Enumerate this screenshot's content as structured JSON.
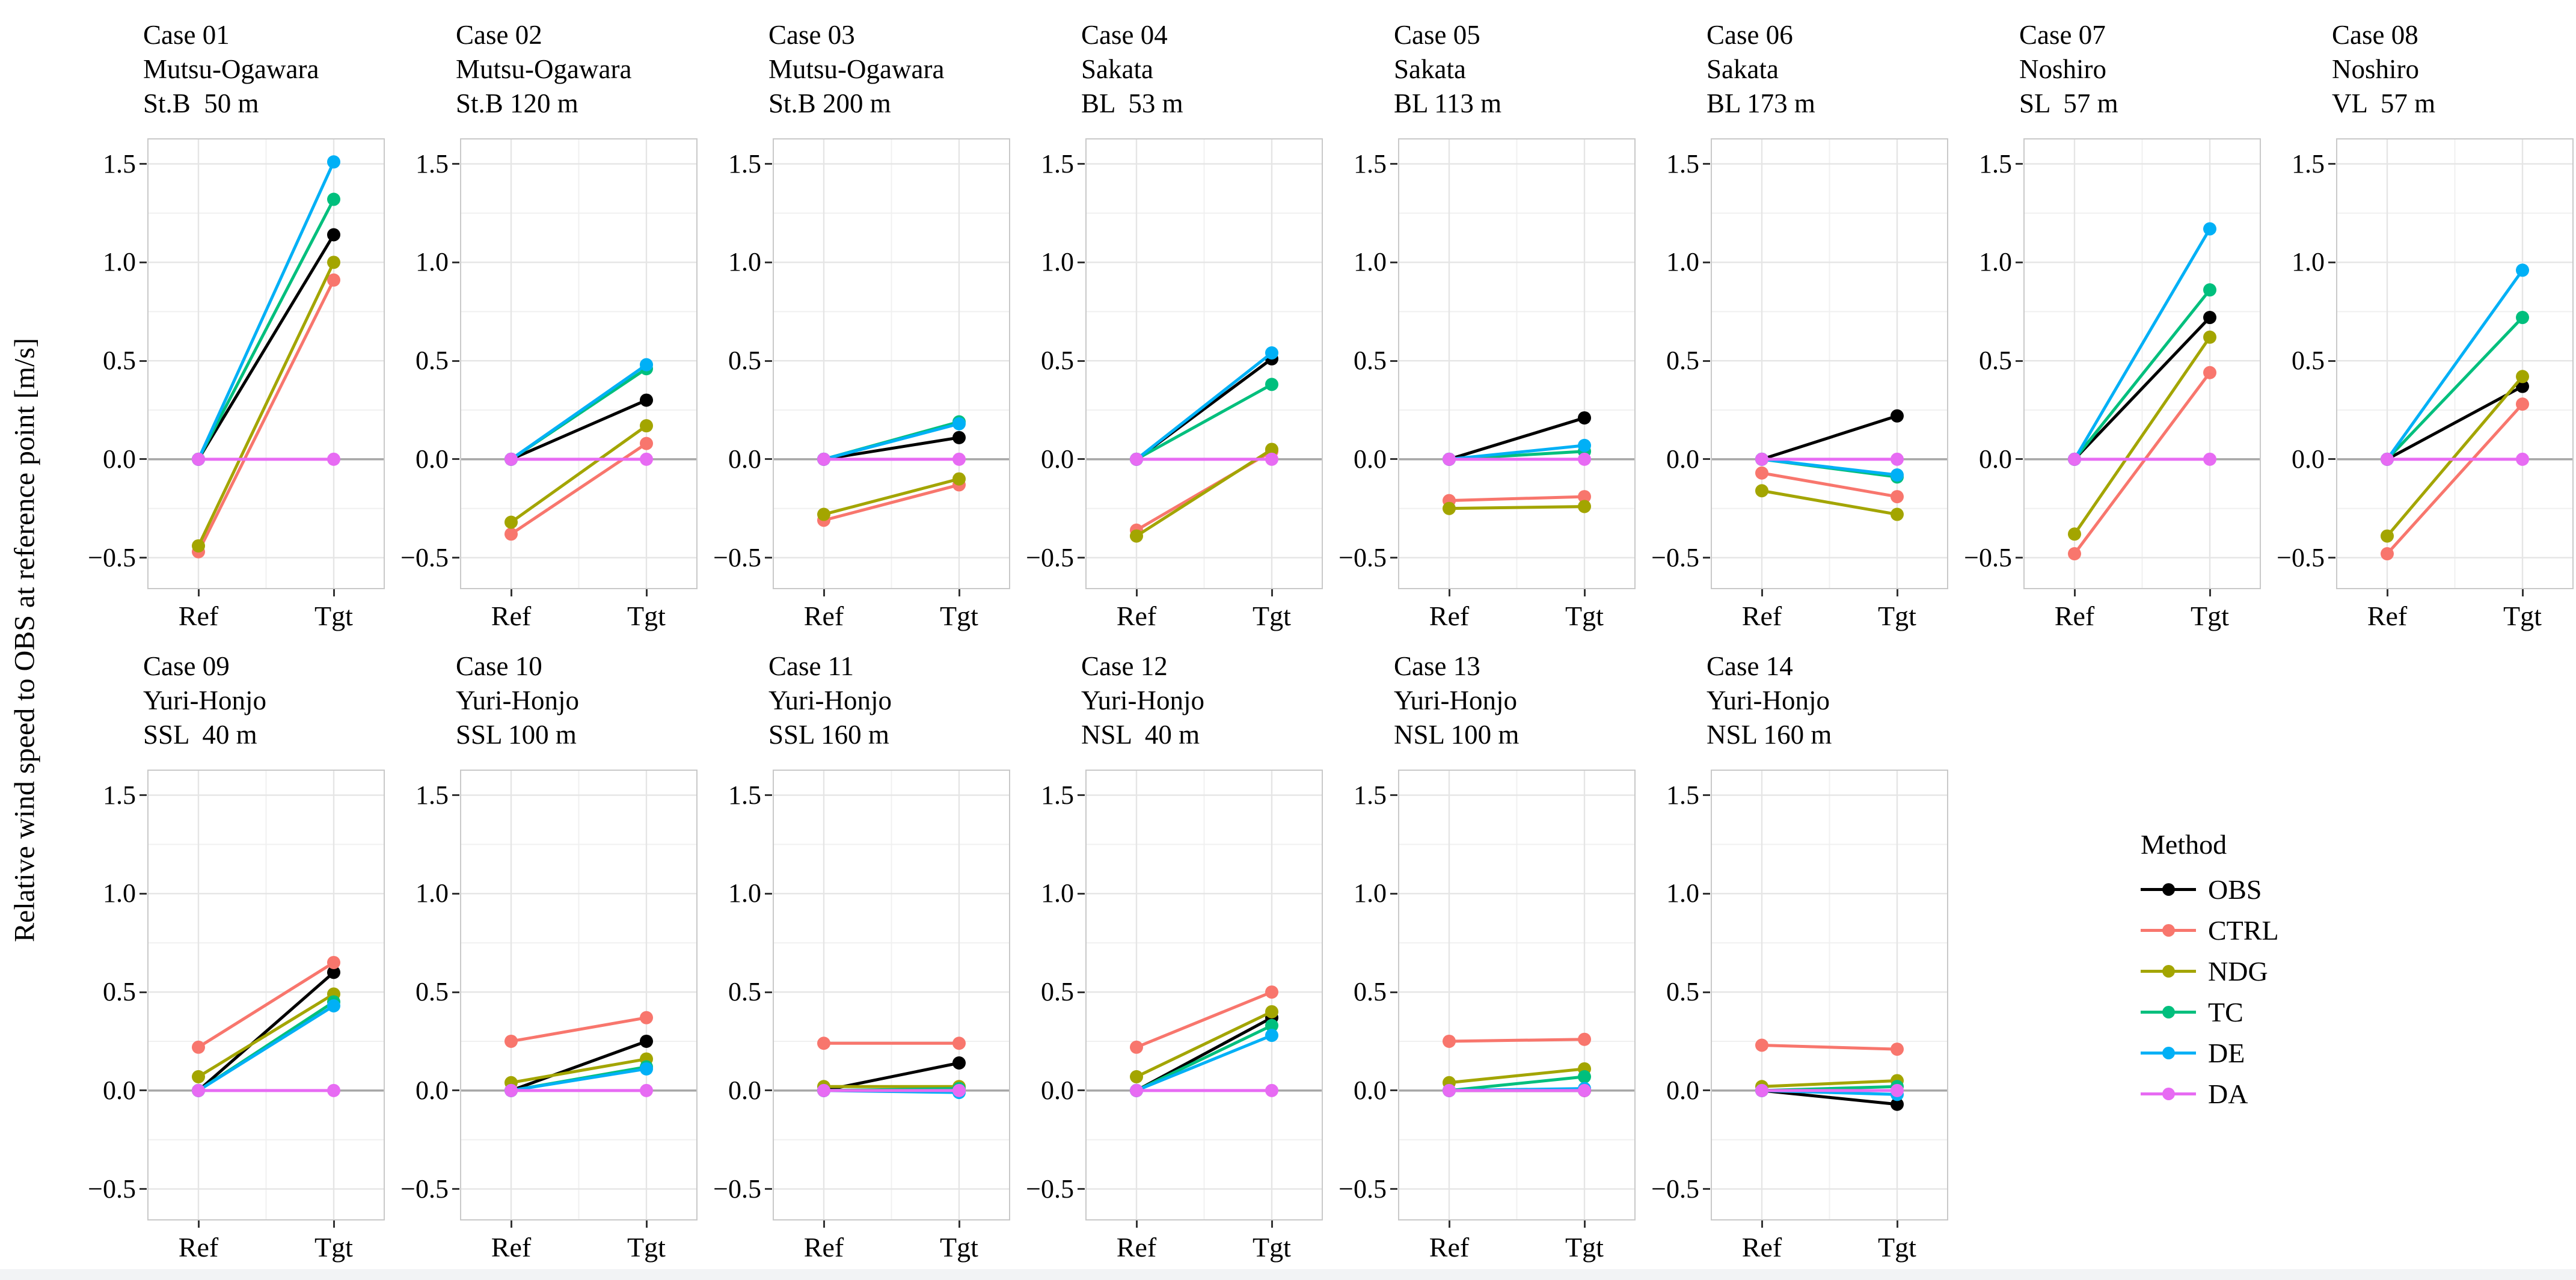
{
  "figure": {
    "y_axis_label": "Relative wind speed to OBS at reference point [m/s]"
  },
  "axes": {
    "x_categories": [
      "Ref",
      "Tgt"
    ],
    "y_tick_labels": [
      "1.5",
      "1.0",
      "0.5",
      "0.0",
      "−0.5"
    ],
    "y_tick_values": [
      1.5,
      1.0,
      0.5,
      0.0,
      -0.5
    ],
    "y_minor_values": [
      1.25,
      0.75,
      0.25,
      -0.25
    ],
    "ylim": [
      -0.66,
      1.63
    ]
  },
  "legend": {
    "title": "Method",
    "entries": [
      {
        "label": "OBS",
        "color": "#000000"
      },
      {
        "label": "CTRL",
        "color": "#F8766D"
      },
      {
        "label": "NDG",
        "color": "#A3A500"
      },
      {
        "label": "TC",
        "color": "#00BF7D"
      },
      {
        "label": "DE",
        "color": "#00B0F6"
      },
      {
        "label": "DA",
        "color": "#E76BF3"
      }
    ]
  },
  "chart_data": {
    "type": "line",
    "x_categories": [
      "Ref",
      "Tgt"
    ],
    "ylabel": "Relative wind speed to OBS at reference point [m/s]",
    "ylim": [
      -0.66,
      1.63
    ],
    "grid": "on",
    "legend_position": "bottom-right",
    "panels": [
      {
        "title_lines": [
          "Case 01",
          "Mutsu-Ogawara",
          "St.B  50 m"
        ],
        "series": [
          {
            "name": "OBS",
            "values": [
              0.0,
              1.14
            ]
          },
          {
            "name": "CTRL",
            "values": [
              -0.47,
              0.91
            ]
          },
          {
            "name": "NDG",
            "values": [
              -0.44,
              1.0
            ]
          },
          {
            "name": "TC",
            "values": [
              0.0,
              1.32
            ]
          },
          {
            "name": "DE",
            "values": [
              0.0,
              1.51
            ]
          },
          {
            "name": "DA",
            "values": [
              0.0,
              0.0
            ]
          }
        ]
      },
      {
        "title_lines": [
          "Case 02",
          "Mutsu-Ogawara",
          "St.B 120 m"
        ],
        "series": [
          {
            "name": "OBS",
            "values": [
              0.0,
              0.3
            ]
          },
          {
            "name": "CTRL",
            "values": [
              -0.38,
              0.08
            ]
          },
          {
            "name": "NDG",
            "values": [
              -0.32,
              0.17
            ]
          },
          {
            "name": "TC",
            "values": [
              0.0,
              0.46
            ]
          },
          {
            "name": "DE",
            "values": [
              0.0,
              0.48
            ]
          },
          {
            "name": "DA",
            "values": [
              0.0,
              0.0
            ]
          }
        ]
      },
      {
        "title_lines": [
          "Case 03",
          "Mutsu-Ogawara",
          "St.B 200 m"
        ],
        "series": [
          {
            "name": "OBS",
            "values": [
              0.0,
              0.11
            ]
          },
          {
            "name": "CTRL",
            "values": [
              -0.31,
              -0.13
            ]
          },
          {
            "name": "NDG",
            "values": [
              -0.28,
              -0.1
            ]
          },
          {
            "name": "TC",
            "values": [
              0.0,
              0.19
            ]
          },
          {
            "name": "DE",
            "values": [
              0.0,
              0.18
            ]
          },
          {
            "name": "DA",
            "values": [
              0.0,
              0.0
            ]
          }
        ]
      },
      {
        "title_lines": [
          "Case 04",
          "Sakata",
          "BL  53 m"
        ],
        "series": [
          {
            "name": "OBS",
            "values": [
              0.0,
              0.51
            ]
          },
          {
            "name": "CTRL",
            "values": [
              -0.36,
              0.04
            ]
          },
          {
            "name": "NDG",
            "values": [
              -0.39,
              0.05
            ]
          },
          {
            "name": "TC",
            "values": [
              0.0,
              0.38
            ]
          },
          {
            "name": "DE",
            "values": [
              0.0,
              0.54
            ]
          },
          {
            "name": "DA",
            "values": [
              0.0,
              0.0
            ]
          }
        ]
      },
      {
        "title_lines": [
          "Case 05",
          "Sakata",
          "BL 113 m"
        ],
        "series": [
          {
            "name": "OBS",
            "values": [
              0.0,
              0.21
            ]
          },
          {
            "name": "CTRL",
            "values": [
              -0.21,
              -0.19
            ]
          },
          {
            "name": "NDG",
            "values": [
              -0.25,
              -0.24
            ]
          },
          {
            "name": "TC",
            "values": [
              0.0,
              0.04
            ]
          },
          {
            "name": "DE",
            "values": [
              0.0,
              0.07
            ]
          },
          {
            "name": "DA",
            "values": [
              0.0,
              0.0
            ]
          }
        ]
      },
      {
        "title_lines": [
          "Case 06",
          "Sakata",
          "BL 173 m"
        ],
        "series": [
          {
            "name": "OBS",
            "values": [
              0.0,
              0.22
            ]
          },
          {
            "name": "CTRL",
            "values": [
              -0.07,
              -0.19
            ]
          },
          {
            "name": "NDG",
            "values": [
              -0.16,
              -0.28
            ]
          },
          {
            "name": "TC",
            "values": [
              0.0,
              -0.09
            ]
          },
          {
            "name": "DE",
            "values": [
              0.0,
              -0.08
            ]
          },
          {
            "name": "DA",
            "values": [
              0.0,
              0.0
            ]
          }
        ]
      },
      {
        "title_lines": [
          "Case 07",
          "Noshiro",
          "SL  57 m"
        ],
        "series": [
          {
            "name": "OBS",
            "values": [
              0.0,
              0.72
            ]
          },
          {
            "name": "CTRL",
            "values": [
              -0.48,
              0.44
            ]
          },
          {
            "name": "NDG",
            "values": [
              -0.38,
              0.62
            ]
          },
          {
            "name": "TC",
            "values": [
              0.0,
              0.86
            ]
          },
          {
            "name": "DE",
            "values": [
              0.0,
              1.17
            ]
          },
          {
            "name": "DA",
            "values": [
              0.0,
              0.0
            ]
          }
        ]
      },
      {
        "title_lines": [
          "Case 08",
          "Noshiro",
          "VL  57 m"
        ],
        "series": [
          {
            "name": "OBS",
            "values": [
              0.0,
              0.37
            ]
          },
          {
            "name": "CTRL",
            "values": [
              -0.48,
              0.28
            ]
          },
          {
            "name": "NDG",
            "values": [
              -0.39,
              0.42
            ]
          },
          {
            "name": "TC",
            "values": [
              0.0,
              0.72
            ]
          },
          {
            "name": "DE",
            "values": [
              0.0,
              0.96
            ]
          },
          {
            "name": "DA",
            "values": [
              0.0,
              0.0
            ]
          }
        ]
      },
      {
        "title_lines": [
          "Case 09",
          "Yuri-Honjo",
          "SSL  40 m"
        ],
        "series": [
          {
            "name": "OBS",
            "values": [
              0.0,
              0.6
            ]
          },
          {
            "name": "CTRL",
            "values": [
              0.22,
              0.65
            ]
          },
          {
            "name": "NDG",
            "values": [
              0.07,
              0.49
            ]
          },
          {
            "name": "TC",
            "values": [
              0.0,
              0.45
            ]
          },
          {
            "name": "DE",
            "values": [
              0.0,
              0.43
            ]
          },
          {
            "name": "DA",
            "values": [
              0.0,
              0.0
            ]
          }
        ]
      },
      {
        "title_lines": [
          "Case 10",
          "Yuri-Honjo",
          "SSL 100 m"
        ],
        "series": [
          {
            "name": "OBS",
            "values": [
              0.0,
              0.25
            ]
          },
          {
            "name": "CTRL",
            "values": [
              0.25,
              0.37
            ]
          },
          {
            "name": "NDG",
            "values": [
              0.04,
              0.16
            ]
          },
          {
            "name": "TC",
            "values": [
              0.0,
              0.12
            ]
          },
          {
            "name": "DE",
            "values": [
              0.0,
              0.11
            ]
          },
          {
            "name": "DA",
            "values": [
              0.0,
              0.0
            ]
          }
        ]
      },
      {
        "title_lines": [
          "Case 11",
          "Yuri-Honjo",
          "SSL 160 m"
        ],
        "series": [
          {
            "name": "OBS",
            "values": [
              0.0,
              0.14
            ]
          },
          {
            "name": "CTRL",
            "values": [
              0.24,
              0.24
            ]
          },
          {
            "name": "NDG",
            "values": [
              0.02,
              0.02
            ]
          },
          {
            "name": "TC",
            "values": [
              0.0,
              0.01
            ]
          },
          {
            "name": "DE",
            "values": [
              0.0,
              -0.01
            ]
          },
          {
            "name": "DA",
            "values": [
              0.0,
              0.0
            ]
          }
        ]
      },
      {
        "title_lines": [
          "Case 12",
          "Yuri-Honjo",
          "NSL  40 m"
        ],
        "series": [
          {
            "name": "OBS",
            "values": [
              0.0,
              0.37
            ]
          },
          {
            "name": "CTRL",
            "values": [
              0.22,
              0.5
            ]
          },
          {
            "name": "NDG",
            "values": [
              0.07,
              0.4
            ]
          },
          {
            "name": "TC",
            "values": [
              0.0,
              0.33
            ]
          },
          {
            "name": "DE",
            "values": [
              0.0,
              0.28
            ]
          },
          {
            "name": "DA",
            "values": [
              0.0,
              0.0
            ]
          }
        ]
      },
      {
        "title_lines": [
          "Case 13",
          "Yuri-Honjo",
          "NSL 100 m"
        ],
        "series": [
          {
            "name": "OBS",
            "values": [
              0.0,
              0.0
            ]
          },
          {
            "name": "CTRL",
            "values": [
              0.25,
              0.26
            ]
          },
          {
            "name": "NDG",
            "values": [
              0.04,
              0.11
            ]
          },
          {
            "name": "TC",
            "values": [
              0.0,
              0.07
            ]
          },
          {
            "name": "DE",
            "values": [
              0.0,
              0.01
            ]
          },
          {
            "name": "DA",
            "values": [
              0.0,
              0.0
            ]
          }
        ]
      },
      {
        "title_lines": [
          "Case 14",
          "Yuri-Honjo",
          "NSL 160 m"
        ],
        "series": [
          {
            "name": "OBS",
            "values": [
              0.0,
              -0.07
            ]
          },
          {
            "name": "CTRL",
            "values": [
              0.23,
              0.21
            ]
          },
          {
            "name": "NDG",
            "values": [
              0.02,
              0.05
            ]
          },
          {
            "name": "TC",
            "values": [
              0.0,
              0.02
            ]
          },
          {
            "name": "DE",
            "values": [
              0.0,
              -0.02
            ]
          },
          {
            "name": "DA",
            "values": [
              0.0,
              0.0
            ]
          }
        ]
      }
    ]
  }
}
